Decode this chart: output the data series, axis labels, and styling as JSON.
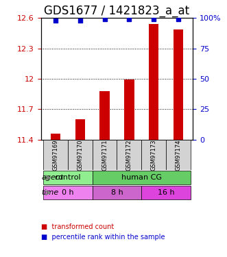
{
  "title": "GDS1677 / 1421823_a_at",
  "samples": [
    "GSM97169",
    "GSM97170",
    "GSM97171",
    "GSM97172",
    "GSM97173",
    "GSM97174"
  ],
  "bar_values": [
    11.46,
    11.6,
    11.88,
    11.99,
    12.54,
    12.49
  ],
  "percentile_values": [
    98,
    98,
    99,
    99,
    99,
    99
  ],
  "bar_color": "#cc0000",
  "dot_color": "#0000cc",
  "ylim_left": [
    11.4,
    12.6
  ],
  "ylim_right": [
    0,
    100
  ],
  "yticks_left": [
    11.4,
    11.7,
    12.0,
    12.3,
    12.6
  ],
  "yticks_right": [
    0,
    25,
    50,
    75,
    100
  ],
  "ytick_labels_left": [
    "11.4",
    "11.7",
    "12",
    "12.3",
    "12.6"
  ],
  "ytick_labels_right": [
    "0",
    "25",
    "50",
    "75",
    "100%"
  ],
  "agent_groups": [
    {
      "label": "control",
      "span": [
        0,
        2
      ],
      "color": "#90ee90"
    },
    {
      "label": "human CG",
      "span": [
        2,
        6
      ],
      "color": "#66cc66"
    }
  ],
  "time_groups": [
    {
      "label": "0 h",
      "span": [
        0,
        2
      ],
      "color": "#ee82ee"
    },
    {
      "label": "8 h",
      "span": [
        2,
        4
      ],
      "color": "#cc66cc"
    },
    {
      "label": "16 h",
      "span": [
        4,
        6
      ],
      "color": "#dd44dd"
    }
  ],
  "legend_items": [
    {
      "label": "transformed count",
      "color": "#cc0000"
    },
    {
      "label": "percentile rank within the sample",
      "color": "#0000cc"
    }
  ],
  "bar_width": 0.4,
  "title_fontsize": 12,
  "tick_label_fontsize": 8,
  "sample_label_fontsize": 7,
  "annotation_fontsize": 9
}
